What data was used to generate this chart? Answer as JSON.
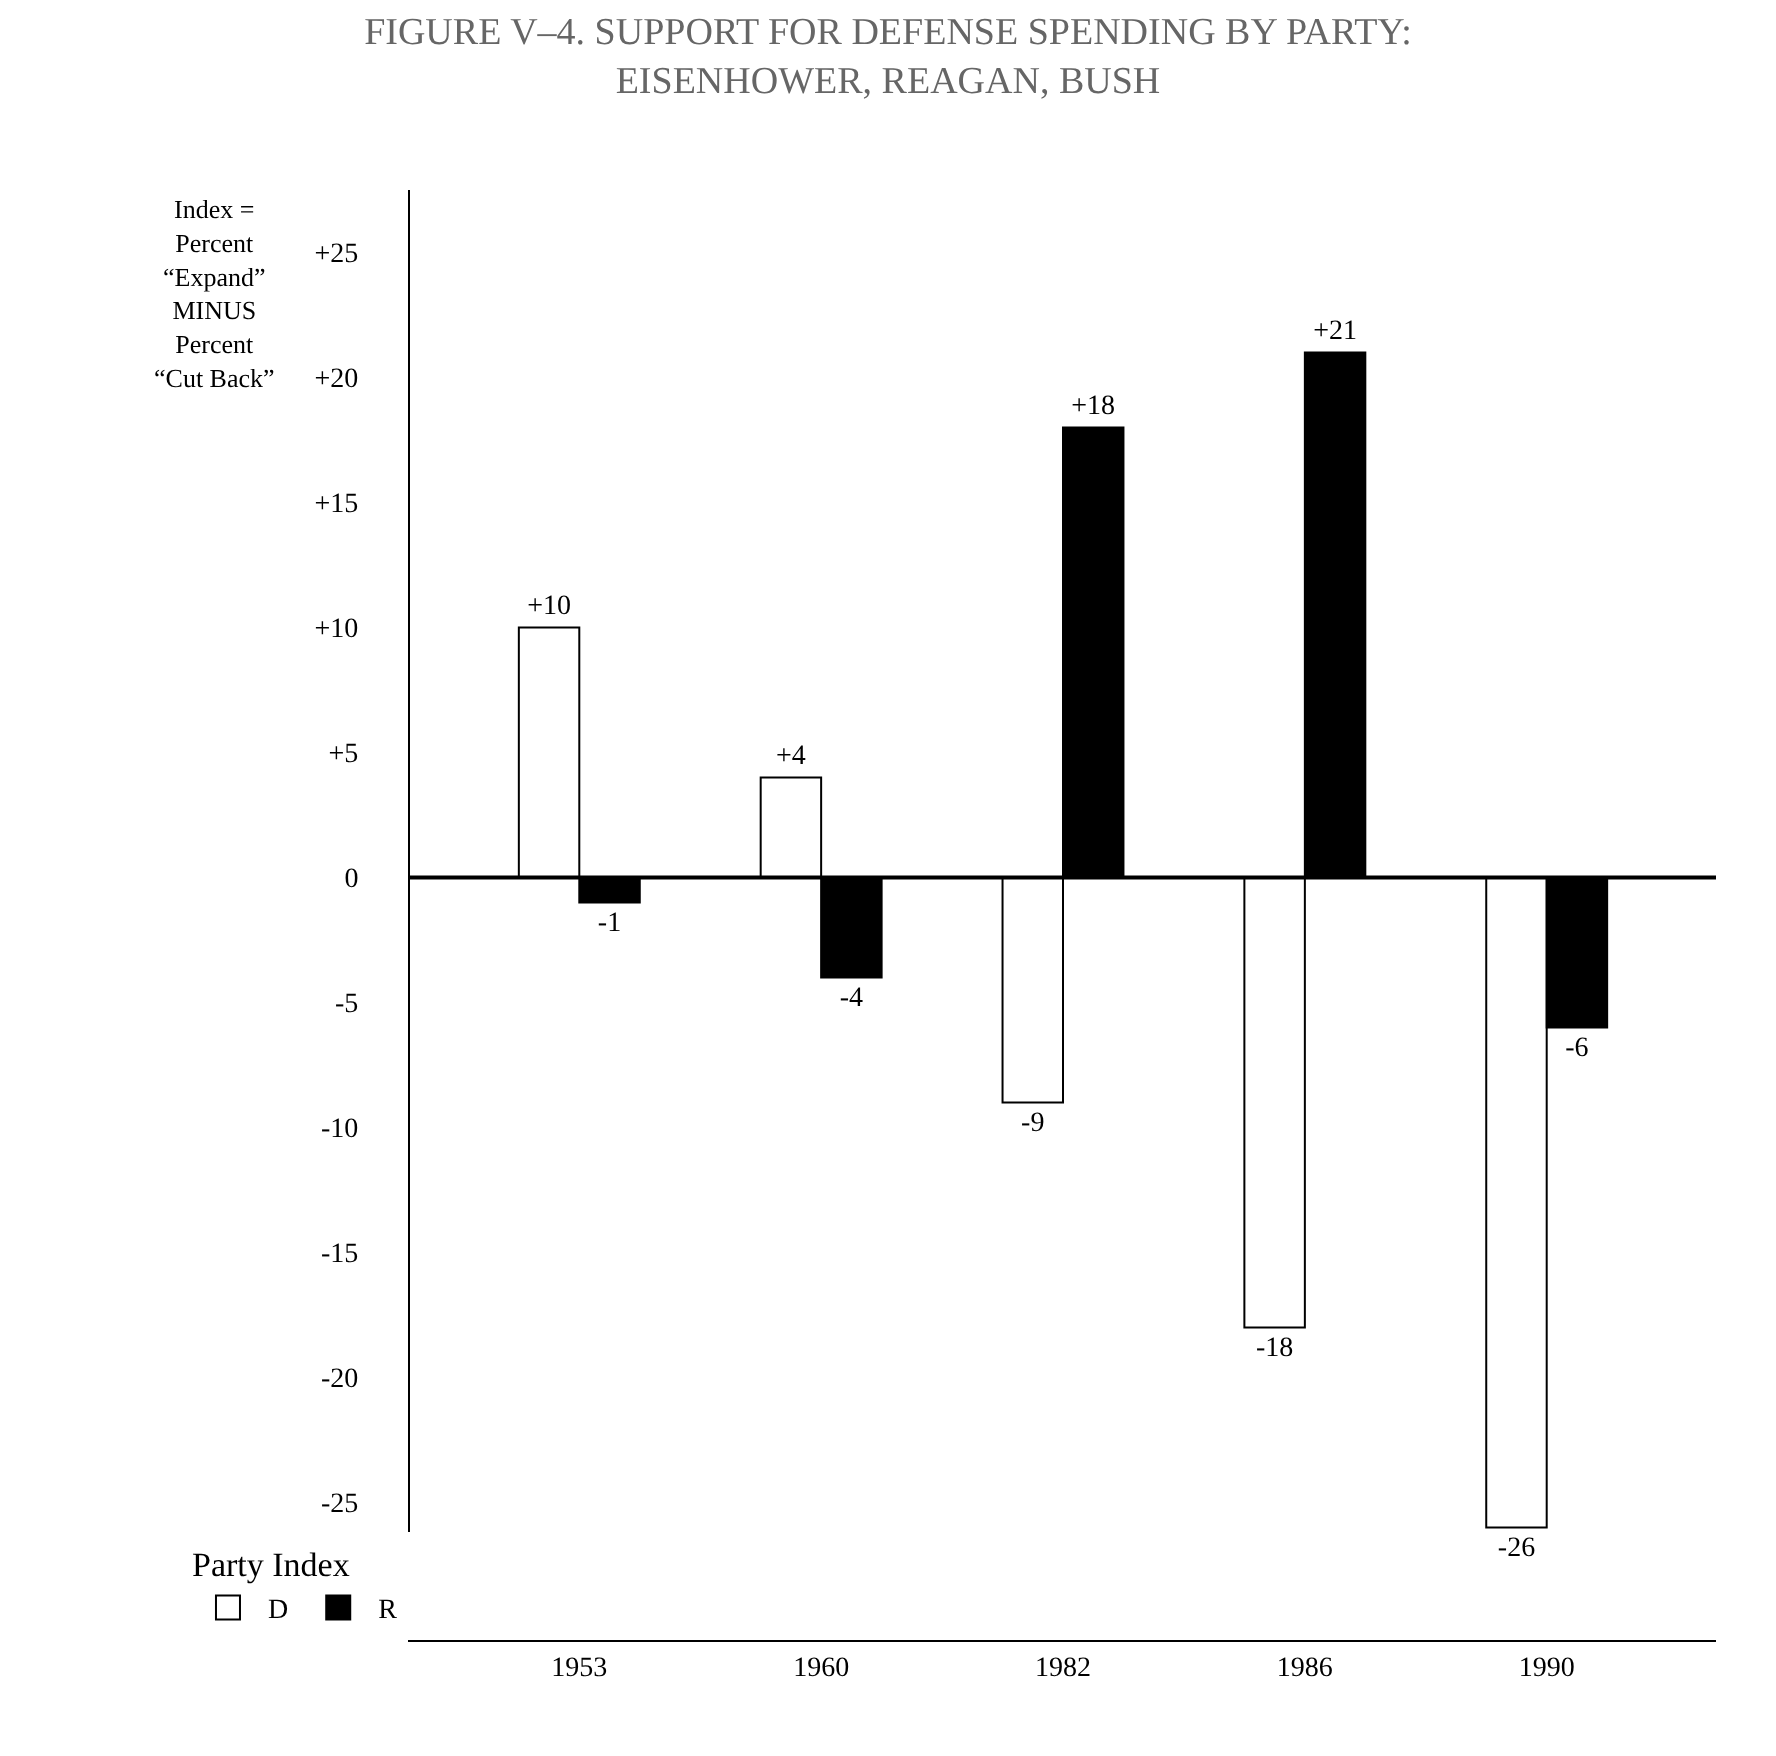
{
  "chart_data": {
    "type": "bar",
    "title": "FIGURE V–4. SUPPORT FOR DEFENSE SPENDING BY PARTY:\nEISENHOWER, REAGAN, BUSH",
    "ylabel": "Index =\nPercent\n“Expand”\nMINUS\nPercent\n“Cut Back”",
    "categories": [
      "1953",
      "1960",
      "1982",
      "1986",
      "1990"
    ],
    "series": [
      {
        "name": "D",
        "color": "#ffffff",
        "values": [
          10,
          4,
          -9,
          -18,
          -26
        ],
        "value_labels": [
          "+10",
          "+4",
          "-9",
          "-18",
          "-26"
        ]
      },
      {
        "name": "R",
        "color": "#000000",
        "values": [
          -1,
          -4,
          18,
          21,
          -6
        ],
        "value_labels": [
          "-1",
          "-4",
          "+18",
          "+21",
          "-6"
        ]
      }
    ],
    "legend_title": "Party Index",
    "legend": "bottom left",
    "ref_lines": [
      {
        "axis": "y",
        "value": 0,
        "color": "#000000"
      }
    ],
    "ylim": [
      -30.5,
      27.5
    ],
    "yticks": [
      {
        "value": 25,
        "label": "+25"
      },
      {
        "value": 20,
        "label": "+20"
      },
      {
        "value": 15,
        "label": "+15"
      },
      {
        "value": 10,
        "label": "+10"
      },
      {
        "value": 5,
        "label": "+5"
      },
      0,
      -5,
      -10,
      -15,
      -20,
      -25
    ]
  }
}
